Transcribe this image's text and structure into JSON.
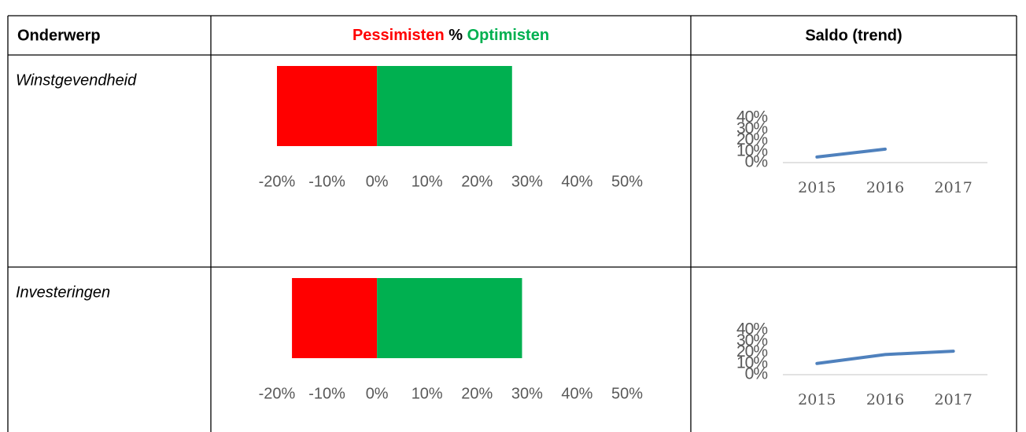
{
  "header": {
    "topic": "Onderwerp",
    "balance": {
      "pessimists": "Pessimisten",
      "unit": "%",
      "optimists": "Optimisten",
      "pessimists_color": "#ff0000",
      "optimists_color": "#00b050"
    },
    "trend": "Saldo (trend)"
  },
  "rows": [
    {
      "topic": "Winstgevendheid",
      "balance": {
        "type": "bar",
        "pessimists": -20,
        "optimists": 27,
        "colors": [
          "#ff0000",
          "#00b050"
        ],
        "xlim": [
          -20,
          50
        ],
        "xticks": [
          {
            "value": -20,
            "label": "-20%"
          },
          {
            "value": -10,
            "label": "-10%"
          },
          {
            "value": 0,
            "label": "0%"
          },
          {
            "value": 10,
            "label": "10%"
          },
          {
            "value": 20,
            "label": "20%"
          },
          {
            "value": 30,
            "label": "30%"
          },
          {
            "value": 40,
            "label": "40%"
          },
          {
            "value": 50,
            "label": "50%"
          }
        ]
      },
      "trend": {
        "type": "line",
        "categories": [
          "2015",
          "2016",
          "2017"
        ],
        "values": [
          5,
          12,
          null
        ],
        "color": "#4f81bd",
        "ylim": [
          0,
          40
        ],
        "yticks": [
          {
            "value": 0,
            "label": "0%"
          },
          {
            "value": 10,
            "label": "10%"
          },
          {
            "value": 20,
            "label": "20%"
          },
          {
            "value": 30,
            "label": "30%"
          },
          {
            "value": 40,
            "label": "40%"
          }
        ]
      }
    },
    {
      "topic": "Investeringen",
      "balance": {
        "type": "bar",
        "pessimists": -17,
        "optimists": 29,
        "colors": [
          "#ff0000",
          "#00b050"
        ],
        "xlim": [
          -20,
          50
        ],
        "xticks": [
          {
            "value": -20,
            "label": "-20%"
          },
          {
            "value": -10,
            "label": "-10%"
          },
          {
            "value": 0,
            "label": "0%"
          },
          {
            "value": 10,
            "label": "10%"
          },
          {
            "value": 20,
            "label": "20%"
          },
          {
            "value": 30,
            "label": "30%"
          },
          {
            "value": 40,
            "label": "40%"
          },
          {
            "value": 50,
            "label": "50%"
          }
        ]
      },
      "trend": {
        "type": "line",
        "categories": [
          "2015",
          "2016",
          "2017"
        ],
        "values": [
          10,
          18,
          21
        ],
        "color": "#4f81bd",
        "ylim": [
          0,
          40
        ],
        "yticks": [
          {
            "value": 0,
            "label": "0%"
          },
          {
            "value": 10,
            "label": "10%"
          },
          {
            "value": 20,
            "label": "20%"
          },
          {
            "value": 30,
            "label": "30%"
          },
          {
            "value": 40,
            "label": "40%"
          }
        ]
      }
    }
  ]
}
